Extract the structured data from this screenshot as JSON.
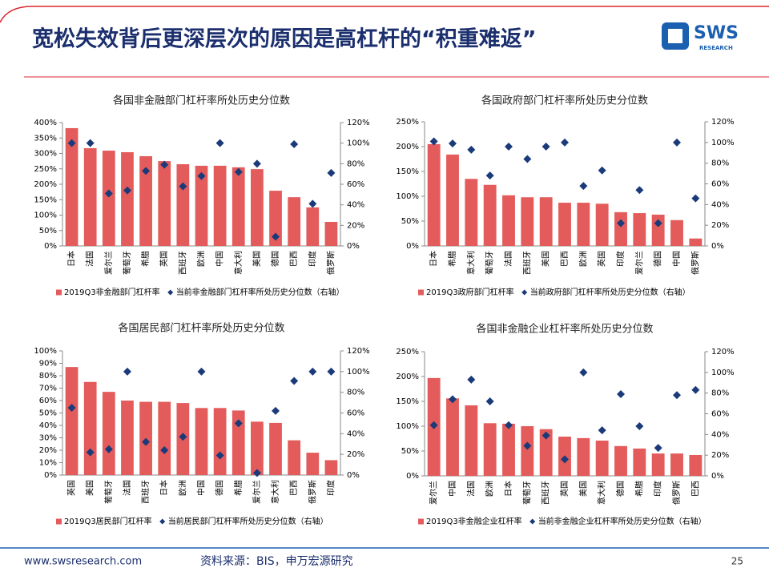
{
  "header": {
    "title": "宽松失效背后更深层次的原因是高杠杆的“积重难返”",
    "logo": "SWS",
    "logo_sub": "RESEARCH"
  },
  "footer": {
    "website": "www.swsresearch.com",
    "source": "资料来源：BIS，申万宏源研究",
    "page": "25"
  },
  "chart_data": [
    {
      "type": "bar",
      "title": "各国非金融部门杠杆率所处历史分位数",
      "categories": [
        "日本",
        "法国",
        "爱尔兰",
        "葡萄牙",
        "希腊",
        "英国",
        "西班牙",
        "欧洲",
        "中国",
        "意大利",
        "美国",
        "德国",
        "巴西",
        "印度",
        "俄罗斯"
      ],
      "series": [
        {
          "name": "2019Q3非金融部门杠杆率",
          "type": "bar",
          "color": "#e45b5b",
          "values": [
            382,
            317,
            309,
            304,
            291,
            275,
            265,
            260,
            260,
            255,
            249,
            179,
            158,
            125,
            78
          ]
        },
        {
          "name": "当前非金融部门杠杆率所处历史分位数（右轴）",
          "type": "scatter",
          "axis": "y2",
          "color": "#1a3a7a",
          "values": [
            100,
            100,
            51,
            54,
            73,
            79,
            58,
            68,
            100,
            72,
            80,
            9,
            99,
            41,
            71
          ]
        }
      ],
      "ylim": [
        0,
        400
      ],
      "yticks": [
        {
          "value": 0,
          "label": "0%"
        },
        {
          "value": 50,
          "label": "50%"
        },
        {
          "value": 100,
          "label": "100%"
        },
        {
          "value": 150,
          "label": "150%"
        },
        {
          "value": 200,
          "label": "200%"
        },
        {
          "value": 250,
          "label": "250%"
        },
        {
          "value": 300,
          "label": "300%"
        },
        {
          "value": 350,
          "label": "350%"
        },
        {
          "value": 400,
          "label": "400%"
        }
      ],
      "y2lim": [
        0,
        120
      ],
      "y2ticks": [
        {
          "value": 0,
          "label": "0%"
        },
        {
          "value": 20,
          "label": "20%"
        },
        {
          "value": 40,
          "label": "40%"
        },
        {
          "value": 60,
          "label": "60%"
        },
        {
          "value": 80,
          "label": "80%"
        },
        {
          "value": 100,
          "label": "100%"
        },
        {
          "value": 120,
          "label": "120%"
        }
      ]
    },
    {
      "type": "bar",
      "title": "各国政府部门杠杆率所处历史分位数",
      "categories": [
        "日本",
        "希腊",
        "意大利",
        "葡萄牙",
        "法国",
        "西班牙",
        "美国",
        "巴西",
        "欧洲",
        "英国",
        "印度",
        "爱尔兰",
        "德国",
        "中国",
        "俄罗斯"
      ],
      "series": [
        {
          "name": "2019Q3政府部门杠杆率",
          "type": "bar",
          "color": "#e45b5b",
          "values": [
            205,
            184,
            135,
            123,
            102,
            98,
            98,
            87,
            87,
            85,
            68,
            66,
            63,
            52,
            15
          ]
        },
        {
          "name": "当前政府部门杠杆率所处历史分位数（右轴）",
          "type": "scatter",
          "axis": "y2",
          "color": "#1a3a7a",
          "values": [
            101,
            99,
            93,
            68,
            96,
            84,
            96,
            100,
            58,
            73,
            22,
            54,
            22,
            100,
            46
          ]
        }
      ],
      "ylim": [
        0,
        250
      ],
      "yticks": [
        {
          "value": 0,
          "label": "0%"
        },
        {
          "value": 50,
          "label": "50%"
        },
        {
          "value": 100,
          "label": "100%"
        },
        {
          "value": 150,
          "label": "150%"
        },
        {
          "value": 200,
          "label": "200%"
        },
        {
          "value": 250,
          "label": "250%"
        }
      ],
      "y2lim": [
        0,
        120
      ],
      "y2ticks": [
        {
          "value": 0,
          "label": "0%"
        },
        {
          "value": 20,
          "label": "20%"
        },
        {
          "value": 40,
          "label": "40%"
        },
        {
          "value": 60,
          "label": "60%"
        },
        {
          "value": 80,
          "label": "80%"
        },
        {
          "value": 100,
          "label": "100%"
        },
        {
          "value": 120,
          "label": "120%"
        }
      ]
    },
    {
      "type": "bar",
      "title": "各国居民部门杠杆率所处历史分位数",
      "categories": [
        "英国",
        "美国",
        "葡萄牙",
        "法国",
        "西班牙",
        "日本",
        "欧洲",
        "中国",
        "德国",
        "希腊",
        "爱尔兰",
        "意大利",
        "巴西",
        "俄罗斯",
        "印度"
      ],
      "series": [
        {
          "name": "2019Q3居民部门杠杆率",
          "type": "bar",
          "color": "#e45b5b",
          "values": [
            87,
            75,
            67,
            60,
            59,
            59,
            58,
            54,
            54,
            52,
            43,
            42,
            28,
            18,
            12
          ]
        },
        {
          "name": "当前居民部门杠杆率所处历史分位数（右轴）",
          "type": "scatter",
          "axis": "y2",
          "color": "#1a3a7a",
          "values": [
            65,
            22,
            25,
            100,
            32,
            24,
            37,
            100,
            19,
            50,
            2,
            62,
            91,
            100,
            100
          ]
        }
      ],
      "ylim": [
        0,
        100
      ],
      "yticks": [
        {
          "value": 0,
          "label": "0%"
        },
        {
          "value": 10,
          "label": "10%"
        },
        {
          "value": 20,
          "label": "20%"
        },
        {
          "value": 30,
          "label": "30%"
        },
        {
          "value": 40,
          "label": "40%"
        },
        {
          "value": 50,
          "label": "50%"
        },
        {
          "value": 60,
          "label": "60%"
        },
        {
          "value": 70,
          "label": "70%"
        },
        {
          "value": 80,
          "label": "80%"
        },
        {
          "value": 90,
          "label": "90%"
        },
        {
          "value": 100,
          "label": "100%"
        }
      ],
      "y2lim": [
        0,
        120
      ],
      "y2ticks": [
        {
          "value": 0,
          "label": "0%"
        },
        {
          "value": 20,
          "label": "20%"
        },
        {
          "value": 40,
          "label": "40%"
        },
        {
          "value": 60,
          "label": "60%"
        },
        {
          "value": 80,
          "label": "80%"
        },
        {
          "value": 100,
          "label": "100%"
        },
        {
          "value": 120,
          "label": "120%"
        }
      ]
    },
    {
      "type": "bar",
      "title": "各国非金融企业杠杆率所处历史分位数",
      "categories": [
        "爱尔兰",
        "中国",
        "法国",
        "欧洲",
        "日本",
        "葡萄牙",
        "西班牙",
        "英国",
        "美国",
        "意大利",
        "德国",
        "希腊",
        "印度",
        "俄罗斯",
        "巴西"
      ],
      "series": [
        {
          "name": "2019Q3非金融企业杠杆率",
          "type": "bar",
          "color": "#e45b5b",
          "values": [
            197,
            156,
            142,
            106,
            105,
            100,
            94,
            79,
            76,
            71,
            60,
            55,
            45,
            45,
            42
          ]
        },
        {
          "name": "当前非金融企业杠杆率所处历史分位数（右轴）",
          "type": "scatter",
          "axis": "y2",
          "color": "#1a3a7a",
          "values": [
            49,
            74,
            93,
            72,
            49,
            29,
            39,
            16,
            100,
            44,
            79,
            48,
            27,
            78,
            83
          ]
        }
      ],
      "ylim": [
        0,
        250
      ],
      "yticks": [
        {
          "value": 0,
          "label": "0%"
        },
        {
          "value": 50,
          "label": "50%"
        },
        {
          "value": 100,
          "label": "100%"
        },
        {
          "value": 150,
          "label": "150%"
        },
        {
          "value": 200,
          "label": "200%"
        },
        {
          "value": 250,
          "label": "250%"
        }
      ],
      "y2lim": [
        0,
        120
      ],
      "y2ticks": [
        {
          "value": 0,
          "label": "0%"
        },
        {
          "value": 20,
          "label": "20%"
        },
        {
          "value": 40,
          "label": "40%"
        },
        {
          "value": 60,
          "label": "60%"
        },
        {
          "value": 80,
          "label": "80%"
        },
        {
          "value": 100,
          "label": "100%"
        },
        {
          "value": 120,
          "label": "120%"
        }
      ]
    }
  ]
}
